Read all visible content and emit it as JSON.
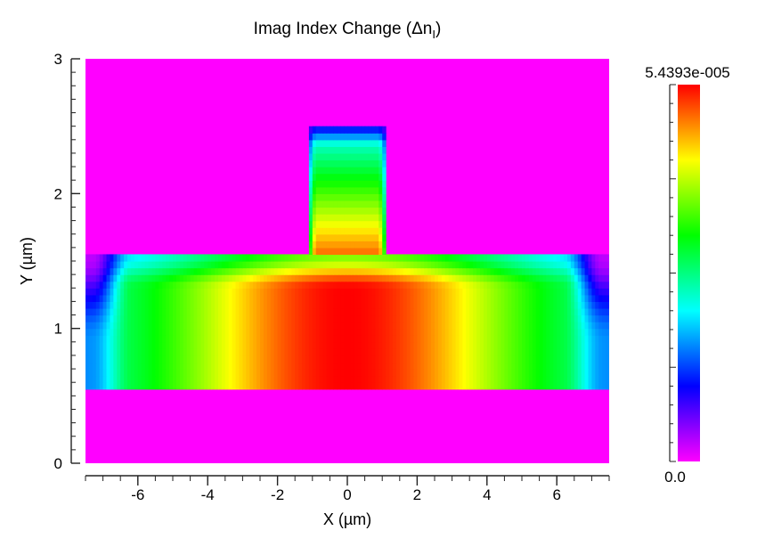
{
  "chart_data": {
    "type": "heatmap",
    "title": "Imag Index Change (Δn",
    "title_subscript": "I",
    "title_close": ")",
    "xlabel": "X (µm)",
    "ylabel": "Y (µm)",
    "xlim": [
      -7.5,
      7.5
    ],
    "ylim": [
      0,
      3.0
    ],
    "x_ticks": [
      -6,
      -4,
      -2,
      0,
      2,
      4,
      6
    ],
    "x_tick_labels": [
      "-6",
      "-4",
      "-2",
      "0",
      "2",
      "4",
      "6"
    ],
    "y_ticks": [
      0,
      1,
      2,
      3
    ],
    "y_tick_labels": [
      "0",
      "1",
      "2",
      "3"
    ],
    "colorbar": {
      "min": 0.0,
      "max": 5.4393e-05,
      "min_label": "0.0",
      "max_label": "5.4393e-005",
      "colormap": [
        "#ff00ff",
        "#0000ff",
        "#00ffff",
        "#00ff00",
        "#ffff00",
        "#ff0000"
      ]
    },
    "background_value": 0.0,
    "regions": [
      {
        "name": "slab",
        "x_range": [
          -7.5,
          7.5
        ],
        "y_range": [
          0.53,
          1.55
        ],
        "profile": "max 5.4393e-05 near x=0, ~2.2e-05 at x=±6.5, decreasing toward top and side edges"
      },
      {
        "name": "rib",
        "x_range": [
          -1.1,
          1.1
        ],
        "y_range": [
          1.55,
          2.5
        ],
        "profile": "~5.0e-05 at y=1.6, ~2.2e-05 at y=2.3, ~1e-05 at top edge y=2.5"
      }
    ]
  }
}
